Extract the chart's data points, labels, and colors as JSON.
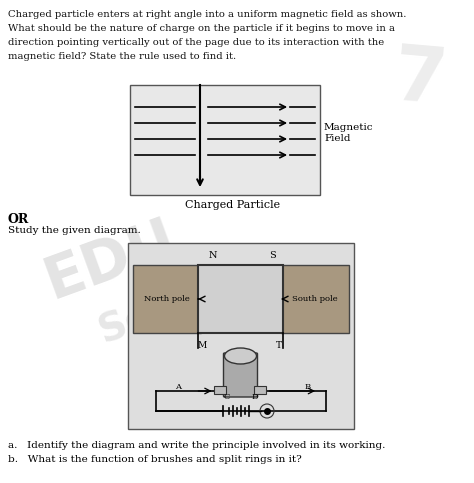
{
  "bg_color": "#ffffff",
  "text_color": "#111111",
  "para_lines": [
    "Charged particle enters at right angle into a uniform magnetic field as shown.",
    "What should be the nature of charge on the particle if it begins to move in a",
    "direction pointing vertically out of the page due to its interaction with the",
    "magnetic field? State the rule used to find it."
  ],
  "magnetic_field_label": "Magnetic\nField",
  "charged_particle_label": "Charged Particle",
  "or_label": "OR",
  "study_label": "Study the given diagram.",
  "north_pole_label": "North pole",
  "south_pole_label": "South pole",
  "N_label": "N",
  "S_label": "S",
  "M_label": "M",
  "T_label": "T",
  "A_label": "A",
  "B_label": "B",
  "C_label": "C",
  "D_label": "D",
  "q1": "a.   Identify the diagram and write the principle involved in its working.",
  "q2": "b.   What is the function of brushes and split rings in it?",
  "fig_width": 4.74,
  "fig_height": 4.83,
  "dpi": 100
}
